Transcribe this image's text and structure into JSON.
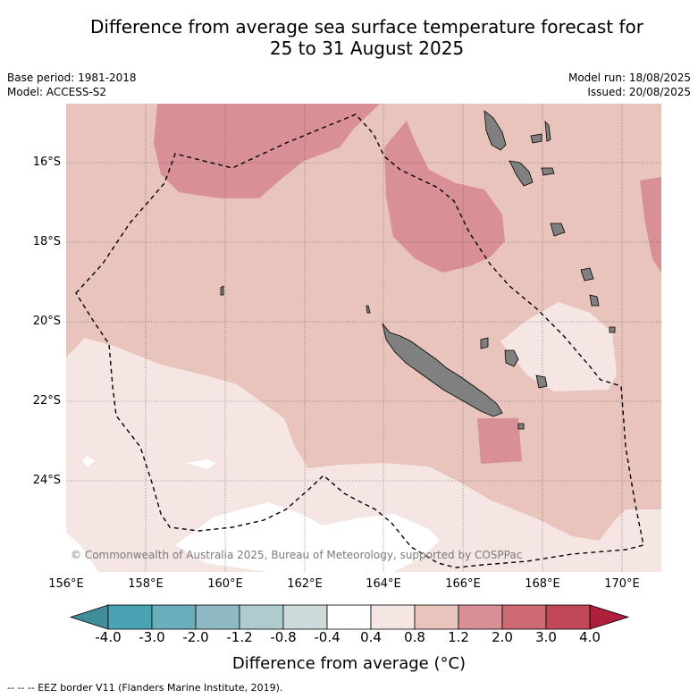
{
  "title_line1": "Difference from average sea surface temperature forecast for",
  "title_line2": "25 to 31 August 2025",
  "base_period": "Base period: 1981-2018",
  "model": "Model: ACCESS-S2",
  "model_run": "Model run: 18/08/2025",
  "issued": "Issued: 20/08/2025",
  "copyright": "© Commonwealth of Australia 2025, Bureau of Meteorology, supported by COSPPac",
  "lat_labels": [
    "16°S",
    "18°S",
    "20°S",
    "22°S",
    "24°S"
  ],
  "lon_labels": [
    "156°E",
    "158°E",
    "160°E",
    "162°E",
    "164°E",
    "166°E",
    "168°E",
    "170°E"
  ],
  "colorbar": {
    "ticks": [
      "-4.0",
      "-3.0",
      "-2.0",
      "-1.2",
      "-0.8",
      "-0.4",
      "0.4",
      "0.8",
      "1.2",
      "2.0",
      "3.0",
      "4.0"
    ],
    "colors": [
      "#4aa3b2",
      "#6aaebb",
      "#8eb9c4",
      "#aecbce",
      "#cdd9db",
      "#ffffff",
      "#f5e6e4",
      "#e8c4bd",
      "#d88f95",
      "#cd6a74",
      "#c14857"
    ],
    "under_color": "#3f8e9a",
    "over_color": "#ad1f3a",
    "title": "Difference from average (°C)"
  },
  "colors": {
    "category_0_4_to_0_8": "#f5e6e4",
    "category_0_8_to_1_2": "#e8c4bd",
    "category_1_2_to_2_0": "#d88f95",
    "below_0_4": "#ffffff",
    "land": "#808080"
  },
  "footnote": "-- -- -- EEZ border V11 (Flanders Marine Institute, 2019)."
}
